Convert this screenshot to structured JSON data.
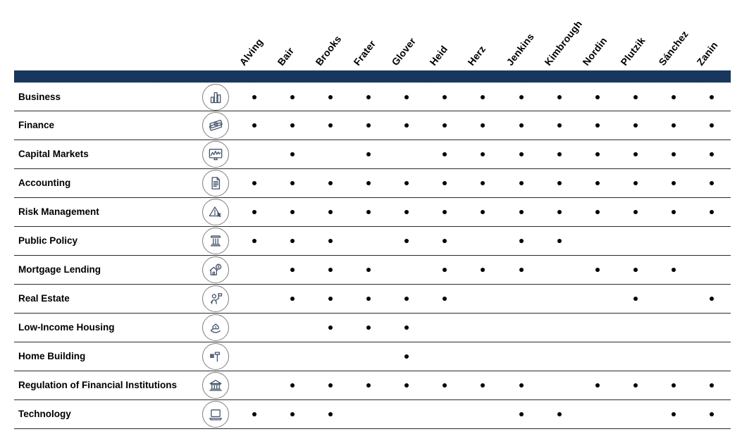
{
  "colors": {
    "header_bar": "#17375E",
    "icon_stroke": "#44546A",
    "circle_stroke": "#7f7f7f",
    "dot": "#000000",
    "row_line": "#2b2b2b"
  },
  "chart_data": {
    "type": "table",
    "description": "Skills matrix: dot indicates the person in the column has expertise in the row area",
    "legend_marker": "•",
    "columns": [
      "Alving",
      "Bair",
      "Brooks",
      "Frater",
      "Glover",
      "Heid",
      "Herz",
      "Jenkins",
      "Kimbrough",
      "Nordin",
      "Plutzik",
      "Sánchez",
      "Zanin"
    ],
    "rows": [
      {
        "label": "Business",
        "icon": "bar-chart-icon",
        "values": [
          1,
          1,
          1,
          1,
          1,
          1,
          1,
          1,
          1,
          1,
          1,
          1,
          1
        ]
      },
      {
        "label": "Finance",
        "icon": "money-icon",
        "values": [
          1,
          1,
          1,
          1,
          1,
          1,
          1,
          1,
          1,
          1,
          1,
          1,
          1
        ]
      },
      {
        "label": "Capital Markets",
        "icon": "stock-monitor-icon",
        "values": [
          0,
          1,
          0,
          1,
          0,
          1,
          1,
          1,
          1,
          1,
          1,
          1,
          1
        ]
      },
      {
        "label": "Accounting",
        "icon": "document-icon",
        "values": [
          1,
          1,
          1,
          1,
          1,
          1,
          1,
          1,
          1,
          1,
          1,
          1,
          1
        ]
      },
      {
        "label": "Risk Management",
        "icon": "warning-cursor-icon",
        "values": [
          1,
          1,
          1,
          1,
          1,
          1,
          1,
          1,
          1,
          1,
          1,
          1,
          1
        ]
      },
      {
        "label": "Public Policy",
        "icon": "pillar-icon",
        "values": [
          1,
          1,
          1,
          0,
          1,
          1,
          0,
          1,
          1,
          0,
          0,
          0,
          0
        ]
      },
      {
        "label": "Mortgage Lending",
        "icon": "house-dollar-icon",
        "values": [
          0,
          1,
          1,
          1,
          0,
          1,
          1,
          1,
          0,
          1,
          1,
          1,
          0
        ]
      },
      {
        "label": "Real Estate",
        "icon": "person-flag-icon",
        "values": [
          0,
          1,
          1,
          1,
          1,
          1,
          0,
          0,
          0,
          0,
          1,
          0,
          1
        ]
      },
      {
        "label": "Low-Income Housing",
        "icon": "hand-house-icon",
        "values": [
          0,
          0,
          1,
          1,
          1,
          0,
          0,
          0,
          0,
          0,
          0,
          0,
          0
        ]
      },
      {
        "label": "Home Building",
        "icon": "hammer-icon",
        "values": [
          0,
          0,
          0,
          0,
          1,
          0,
          0,
          0,
          0,
          0,
          0,
          0,
          0
        ]
      },
      {
        "label": "Regulation of Financial Institutions",
        "icon": "bank-icon",
        "values": [
          0,
          1,
          1,
          1,
          1,
          1,
          1,
          1,
          0,
          1,
          1,
          1,
          1
        ]
      },
      {
        "label": "Technology",
        "icon": "laptop-icon",
        "values": [
          1,
          1,
          1,
          0,
          0,
          0,
          0,
          1,
          1,
          0,
          0,
          1,
          1
        ]
      }
    ]
  }
}
